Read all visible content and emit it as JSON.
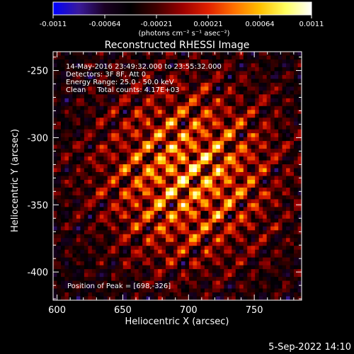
{
  "colorbar": {
    "ticks": [
      "-0.0011",
      "-0.00064",
      "-0.00021",
      "0.00021",
      "0.00064",
      "0.0011"
    ],
    "unit_label": "(photons cm⁻² s⁻¹ asec⁻²)",
    "stops": [
      "#0000ff",
      "#3a1a9a",
      "#1a0022",
      "#000000",
      "#400000",
      "#9a0000",
      "#e02000",
      "#ff7000",
      "#ffc000",
      "#ffff60",
      "#ffffff"
    ]
  },
  "chart_data": {
    "type": "heatmap",
    "title": "Reconstructed RHESSI Image",
    "xlabel": "Heliocentric X (arcsec)",
    "ylabel": "Heliocentric Y (arcsec)",
    "xlim": [
      597,
      786
    ],
    "ylim": [
      -421,
      -236
    ],
    "x_ticks": [
      600,
      650,
      700,
      750
    ],
    "y_ticks": [
      -250,
      -300,
      -350,
      -400
    ],
    "peak": [
      698,
      -326
    ],
    "annotations": [
      "14-May-2016 23:49:32.000 to 23:55:32.000",
      "Detectors: 3F 8F, Att 0",
      "Energy Range: 25.0 - 50.0 keV",
      "Clean     Total counts: 4.17E+03"
    ],
    "peak_label": "Position of Peak = [698,-326]"
  },
  "footer": {
    "timestamp": "5-Sep-2022 14:10"
  }
}
